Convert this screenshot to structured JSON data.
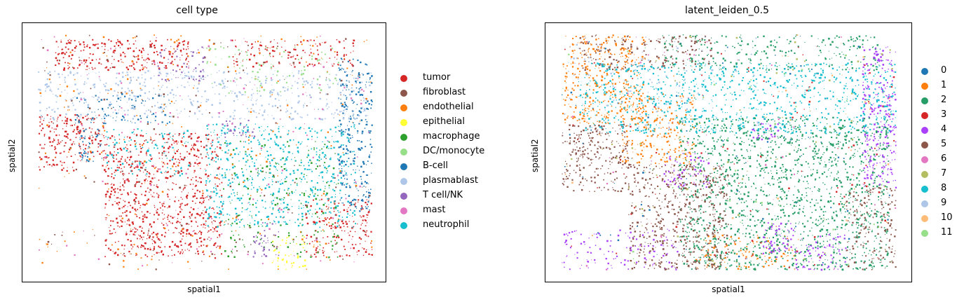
{
  "chart_data": [
    {
      "type": "scatter",
      "title": "cell type",
      "xlabel": "spatial1",
      "ylabel": "spatial2",
      "legend_position": "right",
      "ticks": "none",
      "categories": [
        "tumor",
        "fibroblast",
        "endothelial",
        "epithelial",
        "macrophage",
        "DC/monocyte",
        "B-cell",
        "plasmablast",
        "T cell/NK",
        "mast",
        "neutrophil"
      ],
      "colors": [
        "#d62728",
        "#8c564b",
        "#ff7f0e",
        "#ffff33",
        "#2ca02c",
        "#98df8a",
        "#1f77b4",
        "#aec7e8",
        "#9467bd",
        "#e377c2",
        "#17becf"
      ],
      "regions": [
        {
          "category": "tumor",
          "x": [
            0.05,
            0.45
          ],
          "y": [
            0.02,
            0.15
          ],
          "density": 0.9
        },
        {
          "category": "tumor",
          "x": [
            0.0,
            0.2
          ],
          "y": [
            0.34,
            0.58
          ],
          "density": 0.9
        },
        {
          "category": "tumor",
          "x": [
            0.2,
            0.55
          ],
          "y": [
            0.42,
            0.95
          ],
          "density": 0.85
        },
        {
          "category": "tumor",
          "x": [
            0.58,
            0.95
          ],
          "y": [
            0.02,
            0.14
          ],
          "density": 0.6
        },
        {
          "category": "tumor",
          "x": [
            0.8,
            1.0
          ],
          "y": [
            0.7,
            0.95
          ],
          "density": 0.7
        },
        {
          "category": "neutrophil",
          "x": [
            0.5,
            0.95
          ],
          "y": [
            0.38,
            0.82
          ],
          "density": 0.6
        },
        {
          "category": "neutrophil",
          "x": [
            0.2,
            0.45
          ],
          "y": [
            0.4,
            0.6
          ],
          "density": 0.4
        },
        {
          "category": "plasmablast",
          "x": [
            0.0,
            1.0
          ],
          "y": [
            0.15,
            0.36
          ],
          "density": 0.5
        },
        {
          "category": "B-cell",
          "x": [
            0.9,
            1.0
          ],
          "y": [
            0.1,
            0.75
          ],
          "density": 0.8
        },
        {
          "category": "B-cell",
          "x": [
            0.1,
            0.4
          ],
          "y": [
            0.25,
            0.38
          ],
          "density": 0.5
        },
        {
          "category": "B-cell",
          "x": [
            0.12,
            0.2
          ],
          "y": [
            0.4,
            0.55
          ],
          "density": 0.7
        },
        {
          "category": "T cell/NK",
          "x": [
            0.55,
            0.65
          ],
          "y": [
            0.36,
            0.44
          ],
          "density": 0.8
        },
        {
          "category": "T cell/NK",
          "x": [
            0.35,
            0.5
          ],
          "y": [
            0.05,
            0.2
          ],
          "density": 0.5
        },
        {
          "category": "T cell/NK",
          "x": [
            0.64,
            0.72
          ],
          "y": [
            0.8,
            0.95
          ],
          "density": 0.7
        },
        {
          "category": "macrophage",
          "x": [
            0.55,
            0.9
          ],
          "y": [
            0.45,
            0.95
          ],
          "density": 0.25
        },
        {
          "category": "DC/monocyte",
          "x": [
            0.5,
            0.9
          ],
          "y": [
            0.05,
            0.25
          ],
          "density": 0.25
        },
        {
          "category": "endothelial",
          "x": [
            0.0,
            1.0
          ],
          "y": [
            0.0,
            1.0
          ],
          "density": 0.05
        },
        {
          "category": "epithelial",
          "x": [
            0.7,
            0.8
          ],
          "y": [
            0.85,
            1.0
          ],
          "density": 0.6
        },
        {
          "category": "fibroblast",
          "x": [
            0.0,
            1.0
          ],
          "y": [
            0.0,
            1.0
          ],
          "density": 0.04
        },
        {
          "category": "mast",
          "x": [
            0.0,
            1.0
          ],
          "y": [
            0.0,
            1.0
          ],
          "density": 0.03
        }
      ]
    },
    {
      "type": "scatter",
      "title": "latent_leiden_0.5",
      "xlabel": "spatial1",
      "ylabel": "spatial2",
      "legend_position": "right",
      "ticks": "none",
      "categories": [
        "0",
        "1",
        "2",
        "3",
        "4",
        "5",
        "6",
        "7",
        "8",
        "9",
        "10",
        "11"
      ],
      "colors": [
        "#1f77b4",
        "#ff7f0e",
        "#279e68",
        "#d62728",
        "#aa40fc",
        "#8c564b",
        "#e377c2",
        "#b5bd61",
        "#17becf",
        "#aec7e8",
        "#ffbb78",
        "#98df8a"
      ],
      "regions": [
        {
          "category": "5",
          "x": [
            0.0,
            0.2
          ],
          "y": [
            0.38,
            0.72
          ],
          "density": 0.85
        },
        {
          "category": "5",
          "x": [
            0.2,
            0.5
          ],
          "y": [
            0.55,
            1.0
          ],
          "density": 0.8
        },
        {
          "category": "5",
          "x": [
            0.05,
            0.45
          ],
          "y": [
            0.0,
            0.15
          ],
          "density": 0.6
        },
        {
          "category": "5",
          "x": [
            0.85,
            1.0
          ],
          "y": [
            0.65,
            1.0
          ],
          "density": 0.6
        },
        {
          "category": "1",
          "x": [
            0.0,
            0.25
          ],
          "y": [
            0.0,
            0.38
          ],
          "density": 0.75
        },
        {
          "category": "1",
          "x": [
            0.18,
            0.4
          ],
          "y": [
            0.25,
            0.55
          ],
          "density": 0.7
        },
        {
          "category": "1",
          "x": [
            0.4,
            0.7
          ],
          "y": [
            0.85,
            1.0
          ],
          "density": 0.5
        },
        {
          "category": "2",
          "x": [
            0.35,
            0.98
          ],
          "y": [
            0.35,
            1.0
          ],
          "density": 0.8
        },
        {
          "category": "2",
          "x": [
            0.3,
            0.95
          ],
          "y": [
            0.0,
            0.15
          ],
          "density": 0.5
        },
        {
          "category": "8",
          "x": [
            0.05,
            1.0
          ],
          "y": [
            0.12,
            0.42
          ],
          "density": 0.65
        },
        {
          "category": "4",
          "x": [
            0.9,
            1.0
          ],
          "y": [
            0.05,
            0.65
          ],
          "density": 0.9
        },
        {
          "category": "4",
          "x": [
            0.0,
            0.35
          ],
          "y": [
            0.82,
            1.0
          ],
          "density": 0.4
        },
        {
          "category": "4",
          "x": [
            0.3,
            0.45
          ],
          "y": [
            0.5,
            0.65
          ],
          "density": 0.6
        },
        {
          "category": "4",
          "x": [
            0.6,
            0.7
          ],
          "y": [
            0.8,
            0.95
          ],
          "density": 0.8
        },
        {
          "category": "4",
          "x": [
            0.57,
            0.65
          ],
          "y": [
            0.37,
            0.45
          ],
          "density": 0.8
        },
        {
          "category": "4",
          "x": [
            0.7,
            0.85
          ],
          "y": [
            0.85,
            1.0
          ],
          "density": 0.6
        },
        {
          "category": "9",
          "x": [
            0.0,
            0.6
          ],
          "y": [
            0.0,
            0.4
          ],
          "density": 0.08
        },
        {
          "category": "7",
          "x": [
            0.0,
            1.0
          ],
          "y": [
            0.0,
            1.0
          ],
          "density": 0.02
        },
        {
          "category": "0",
          "x": [
            0.0,
            1.0
          ],
          "y": [
            0.0,
            1.0
          ],
          "density": 0.02
        },
        {
          "category": "3",
          "x": [
            0.0,
            1.0
          ],
          "y": [
            0.0,
            1.0
          ],
          "density": 0.02
        },
        {
          "category": "6",
          "x": [
            0.0,
            1.0
          ],
          "y": [
            0.0,
            1.0
          ],
          "density": 0.01
        },
        {
          "category": "10",
          "x": [
            0.0,
            1.0
          ],
          "y": [
            0.0,
            1.0
          ],
          "density": 0.01
        },
        {
          "category": "11",
          "x": [
            0.0,
            1.0
          ],
          "y": [
            0.0,
            1.0
          ],
          "density": 0.01
        }
      ]
    }
  ]
}
